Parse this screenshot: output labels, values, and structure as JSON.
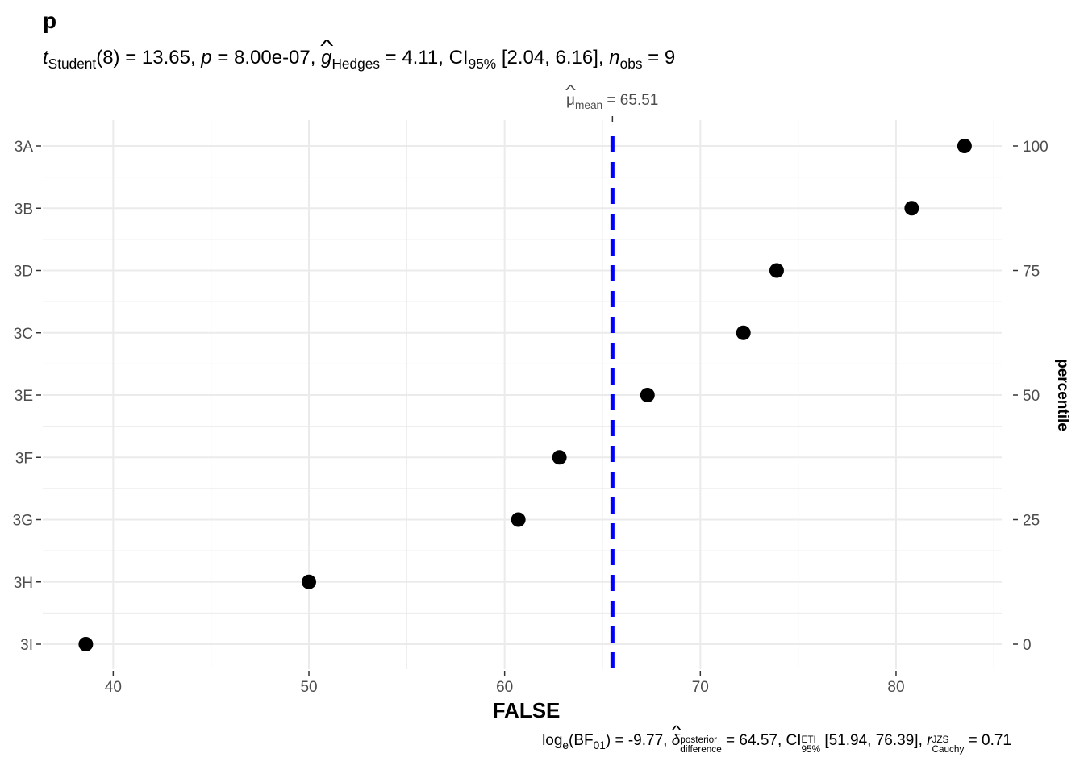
{
  "title": "p",
  "subtitle": {
    "t_symbol": "t",
    "t_sub": "Student",
    "df": "(8)",
    "eq1": " = 13.65, ",
    "p_symbol": "p",
    "eq2": " = 8.00e-07, ",
    "g_symbol": "g",
    "g_sub": "Hedges",
    "eq3": " = 4.11, CI",
    "ci_sub": "95%",
    "eq4": " [2.04, 6.16], ",
    "n_symbol": "n",
    "n_sub": "obs",
    "eq5": " = 9"
  },
  "mean_label": {
    "mu": "μ",
    "sub": "mean",
    "value": " = 65.51"
  },
  "caption": {
    "log": "log",
    "log_sub": "e",
    "bf": "(BF",
    "bf_sub": "01",
    "bf_end": ") = -9.77, ",
    "delta": "δ",
    "delta_sup": "posterior",
    "delta_sub": "difference",
    "eq1": " = 64.57, CI",
    "ci_sup": "ETI",
    "ci_sub": "95%",
    "eq2": " [51.94, 76.39], ",
    "r": "r",
    "r_sup": "JZS",
    "r_sub": "Cauchy",
    "eq3": " = 0.71"
  },
  "chart_data": {
    "type": "scatter",
    "xlabel": "FALSE",
    "ylabel_right": "percentile",
    "xlim": [
      36.4,
      85.4
    ],
    "x_ticks": [
      40,
      50,
      60,
      70,
      80
    ],
    "categories": [
      "3A",
      "3B",
      "3D",
      "3C",
      "3E",
      "3F",
      "3G",
      "3H",
      "3I"
    ],
    "values": [
      83.5,
      80.8,
      73.9,
      72.2,
      67.3,
      62.8,
      60.7,
      50.0,
      38.6
    ],
    "right_ticks": [
      100,
      75,
      50,
      25,
      0
    ],
    "mean_line": 65.51,
    "grid": true,
    "colors": {
      "points": "#000000",
      "mean_line": "#0000ff",
      "grid": "#ebebeb",
      "axis_text": "#4d4d4d"
    }
  }
}
